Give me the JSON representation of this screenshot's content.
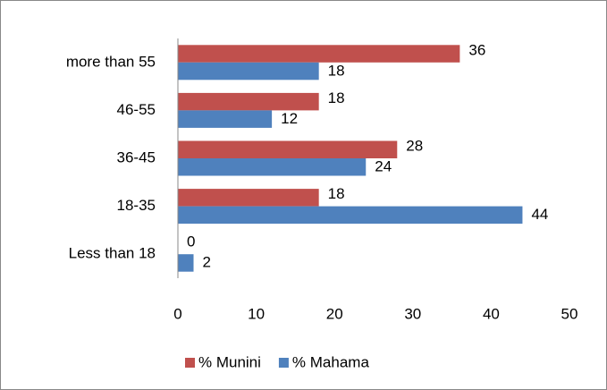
{
  "chart_data": {
    "type": "hbar",
    "categories": [
      "more than 55",
      "46-55",
      "36-45",
      "18-35",
      "Less than 18"
    ],
    "series": [
      {
        "name": "% Munini",
        "color": "#c0504d",
        "values": [
          36,
          18,
          28,
          18,
          0
        ]
      },
      {
        "name": "% Mahama",
        "color": "#4f81bd",
        "values": [
          18,
          12,
          24,
          44,
          2
        ]
      }
    ],
    "xlim": [
      0,
      50
    ],
    "xticks": [
      0,
      10,
      20,
      30,
      40,
      50
    ],
    "grid": false,
    "legend": "bottom"
  }
}
